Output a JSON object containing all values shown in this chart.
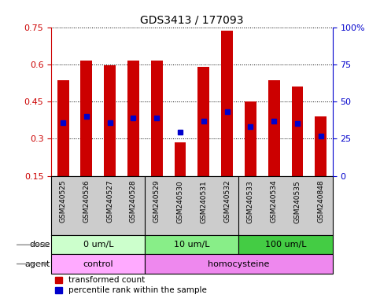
{
  "title": "GDS3413 / 177093",
  "samples": [
    "GSM240525",
    "GSM240526",
    "GSM240527",
    "GSM240528",
    "GSM240529",
    "GSM240530",
    "GSM240531",
    "GSM240532",
    "GSM240533",
    "GSM240534",
    "GSM240535",
    "GSM240848"
  ],
  "red_values": [
    0.535,
    0.615,
    0.595,
    0.615,
    0.615,
    0.285,
    0.59,
    0.735,
    0.45,
    0.535,
    0.51,
    0.39
  ],
  "blue_values": [
    0.365,
    0.39,
    0.365,
    0.385,
    0.385,
    0.325,
    0.37,
    0.41,
    0.35,
    0.37,
    0.36,
    0.31
  ],
  "ylim_left": [
    0.15,
    0.75
  ],
  "ylim_right": [
    0,
    100
  ],
  "yticks_left": [
    0.15,
    0.3,
    0.45,
    0.6,
    0.75
  ],
  "yticks_right": [
    0,
    25,
    50,
    75,
    100
  ],
  "red_color": "#cc0000",
  "blue_color": "#0000cc",
  "bar_width": 0.5,
  "blue_marker_size": 5,
  "dose_colors": [
    "#ccffcc",
    "#88ee88",
    "#44cc44"
  ],
  "dose_labels": [
    "0 um/L",
    "10 um/L",
    "100 um/L"
  ],
  "agent_colors": [
    "#ffaaff",
    "#ee88ee"
  ],
  "agent_labels": [
    "control",
    "homocysteine"
  ],
  "dose_row_label": "dose",
  "agent_row_label": "agent",
  "legend_red": "transformed count",
  "legend_blue": "percentile rank within the sample",
  "bg_color": "#ffffff",
  "tick_color_left": "#cc0000",
  "tick_color_right": "#0000cc",
  "sample_bg_color": "#cccccc",
  "arrow_color": "#888888"
}
